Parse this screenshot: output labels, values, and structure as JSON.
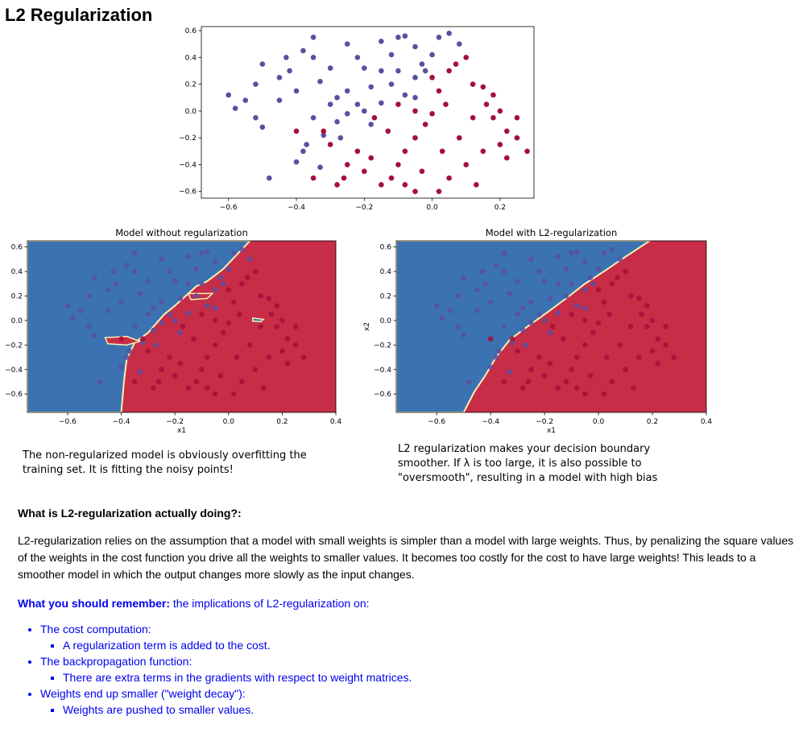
{
  "page": {
    "title": "L2 Regularization"
  },
  "captions": {
    "left": "The non-regularized model is obviously overfitting the training set. It is fitting the noisy points!",
    "right": "L2 regularization makes your decision boundary smoother. If λ is too large, it is also possible to \"oversmooth\", resulting in a model with high bias"
  },
  "section": {
    "question": "What is L2-regularization actually doing?:",
    "paragraph": "L2-regularization relies on the assumption that a model with small weights is simpler than a model with large weights. Thus, by penalizing the square values of the weights in the cost function you drive all the weights to smaller values. It becomes too costly for the cost to have large weights! This leads to a smoother model in which the output changes more slowly as the input changes.",
    "remember_bold": "What you should remember:",
    "remember_rest": " the implications of L2-regularization on:",
    "items": [
      {
        "label": "The cost computation:",
        "sub": "A regularization term is added to the cost."
      },
      {
        "label": "The backpropagation function:",
        "sub": "There are extra terms in the gradients with respect to weight matrices."
      },
      {
        "label": "Weights end up smaller (\"weight decay\"):",
        "sub": "Weights are pushed to smaller values."
      }
    ]
  },
  "colors": {
    "blue_point": "#5b4f9f",
    "red_point": "#a50f3a",
    "region_blue": "#3b73b2",
    "region_red": "#c72d47",
    "boundary": "#f5f0b0"
  },
  "chart_data": [
    {
      "type": "scatter",
      "title": "",
      "xlabel": "",
      "ylabel": "",
      "xlim": [
        -0.68,
        0.3
      ],
      "ylim": [
        -0.65,
        0.63
      ],
      "xticks": [
        "-0.6",
        "-0.4",
        "-0.2",
        "0.0",
        "0.2"
      ],
      "yticks": [
        "-0.6",
        "-0.4",
        "-0.2",
        "0.0",
        "0.2",
        "0.4",
        "0.6"
      ],
      "series": [
        {
          "class": 0,
          "points": [
            [
              -0.6,
              0.12
            ],
            [
              -0.55,
              0.08
            ],
            [
              -0.52,
              0.2
            ],
            [
              -0.5,
              0.35
            ],
            [
              -0.45,
              0.08
            ],
            [
              -0.42,
              0.3
            ],
            [
              -0.38,
              0.45
            ],
            [
              -0.35,
              0.4
            ],
            [
              -0.33,
              0.22
            ],
            [
              -0.3,
              0.32
            ],
            [
              -0.28,
              0.1
            ],
            [
              -0.25,
              0.15
            ],
            [
              -0.22,
              0.4
            ],
            [
              -0.2,
              0.32
            ],
            [
              -0.18,
              0.18
            ],
            [
              -0.15,
              0.52
            ],
            [
              -0.12,
              0.42
            ],
            [
              -0.1,
              0.3
            ],
            [
              -0.08,
              0.56
            ],
            [
              -0.05,
              0.48
            ],
            [
              -0.03,
              0.35
            ],
            [
              0.0,
              0.42
            ],
            [
              0.02,
              0.55
            ],
            [
              -0.5,
              -0.12
            ],
            [
              -0.48,
              -0.5
            ],
            [
              -0.4,
              -0.38
            ],
            [
              -0.37,
              -0.25
            ],
            [
              -0.35,
              -0.05
            ],
            [
              -0.32,
              -0.18
            ],
            [
              -0.28,
              -0.08
            ],
            [
              -0.25,
              -0.02
            ],
            [
              -0.22,
              0.05
            ],
            [
              -0.18,
              -0.1
            ],
            [
              -0.15,
              0.06
            ],
            [
              -0.12,
              0.2
            ],
            [
              -0.08,
              0.12
            ],
            [
              -0.05,
              0.25
            ],
            [
              -0.02,
              0.3
            ],
            [
              -0.3,
              0.05
            ],
            [
              -0.4,
              0.15
            ],
            [
              -0.45,
              0.25
            ],
            [
              -0.35,
              0.55
            ],
            [
              -0.25,
              0.5
            ],
            [
              -0.1,
              0.55
            ],
            [
              0.05,
              0.58
            ],
            [
              -0.2,
              0.0
            ],
            [
              -0.33,
              -0.42
            ],
            [
              -0.38,
              -0.3
            ],
            [
              -0.52,
              -0.05
            ],
            [
              -0.27,
              -0.2
            ],
            [
              -0.58,
              0.02
            ],
            [
              -0.15,
              0.3
            ],
            [
              -0.05,
              0.1
            ],
            [
              0.08,
              0.5
            ],
            [
              -0.43,
              0.4
            ]
          ]
        },
        {
          "class": 1,
          "points": [
            [
              0.1,
              0.4
            ],
            [
              0.12,
              0.2
            ],
            [
              0.15,
              0.18
            ],
            [
              0.18,
              -0.05
            ],
            [
              0.2,
              0.0
            ],
            [
              0.22,
              -0.15
            ],
            [
              0.25,
              -0.2
            ],
            [
              0.28,
              -0.3
            ],
            [
              0.05,
              0.3
            ],
            [
              0.02,
              0.15
            ],
            [
              0.0,
              -0.02
            ],
            [
              -0.02,
              -0.1
            ],
            [
              -0.05,
              -0.2
            ],
            [
              -0.08,
              -0.3
            ],
            [
              -0.1,
              -0.4
            ],
            [
              -0.12,
              -0.5
            ],
            [
              -0.15,
              -0.55
            ],
            [
              -0.18,
              -0.35
            ],
            [
              -0.2,
              -0.45
            ],
            [
              -0.22,
              -0.3
            ],
            [
              -0.25,
              -0.4
            ],
            [
              -0.28,
              -0.55
            ],
            [
              -0.3,
              -0.25
            ],
            [
              -0.32,
              -0.15
            ],
            [
              -0.35,
              -0.5
            ],
            [
              -0.4,
              -0.15
            ],
            [
              0.05,
              -0.5
            ],
            [
              0.02,
              -0.6
            ],
            [
              -0.05,
              -0.6
            ],
            [
              0.1,
              -0.4
            ],
            [
              0.15,
              -0.3
            ],
            [
              0.08,
              -0.2
            ],
            [
              0.12,
              -0.05
            ],
            [
              -0.1,
              0.05
            ],
            [
              -0.05,
              0.0
            ],
            [
              0.0,
              0.25
            ],
            [
              0.2,
              -0.25
            ],
            [
              0.25,
              -0.05
            ],
            [
              0.18,
              0.12
            ],
            [
              0.07,
              0.35
            ],
            [
              -0.03,
              -0.45
            ],
            [
              -0.13,
              -0.15
            ],
            [
              -0.17,
              -0.05
            ],
            [
              0.22,
              -0.35
            ],
            [
              0.03,
              -0.3
            ],
            [
              -0.08,
              -0.55
            ],
            [
              0.13,
              -0.55
            ],
            [
              -0.26,
              -0.5
            ],
            [
              0.16,
              0.05
            ],
            [
              0.04,
              0.05
            ]
          ]
        }
      ]
    },
    {
      "type": "scatter",
      "title": "Model without regularization",
      "xlabel": "x1",
      "ylabel": "",
      "xlim": [
        -0.75,
        0.4
      ],
      "ylim": [
        -0.75,
        0.65
      ],
      "xticks": [
        "-0.6",
        "-0.4",
        "-0.2",
        "0.0",
        "0.2",
        "0.4"
      ],
      "yticks": [
        "-0.6",
        "-0.4",
        "-0.2",
        "0.0",
        "0.2",
        "0.4",
        "0.6"
      ],
      "boundary": "overfit"
    },
    {
      "type": "scatter",
      "title": "Model with L2-regularization",
      "xlabel": "x1",
      "ylabel": "x2",
      "xlim": [
        -0.75,
        0.4
      ],
      "ylim": [
        -0.75,
        0.65
      ],
      "xticks": [
        "-0.6",
        "-0.4",
        "-0.2",
        "0.0",
        "0.2",
        "0.4"
      ],
      "yticks": [
        "-0.6",
        "-0.4",
        "-0.2",
        "0.0",
        "0.2",
        "0.4",
        "0.6"
      ],
      "boundary": "smooth"
    }
  ]
}
